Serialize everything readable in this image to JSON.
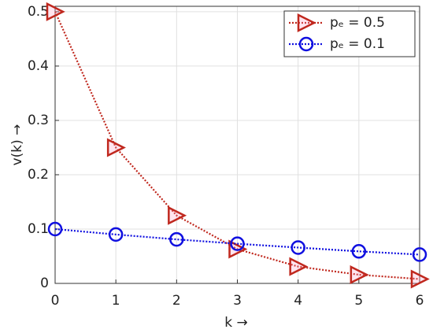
{
  "chart_data": {
    "type": "line",
    "x": [
      0,
      1,
      2,
      3,
      4,
      5,
      6
    ],
    "series": [
      {
        "name": "pₑ = 0.5",
        "color": "#c0281e",
        "marker": "triangle-right",
        "values": [
          0.5,
          0.25,
          0.125,
          0.063,
          0.031,
          0.016,
          0.008
        ]
      },
      {
        "name": "pₑ = 0.1",
        "color": "#1010e0",
        "marker": "circle",
        "values": [
          0.1,
          0.09,
          0.081,
          0.073,
          0.066,
          0.059,
          0.053
        ]
      }
    ],
    "xlabel": "k →",
    "ylabel": "v(k) →",
    "xlim": [
      0,
      6
    ],
    "ylim": [
      0,
      0.51
    ],
    "xticks": [
      0,
      1,
      2,
      3,
      4,
      5,
      6
    ],
    "yticks": [
      0,
      0.1,
      0.2,
      0.3,
      0.4,
      0.5
    ],
    "grid": true,
    "legend": "upper right"
  }
}
